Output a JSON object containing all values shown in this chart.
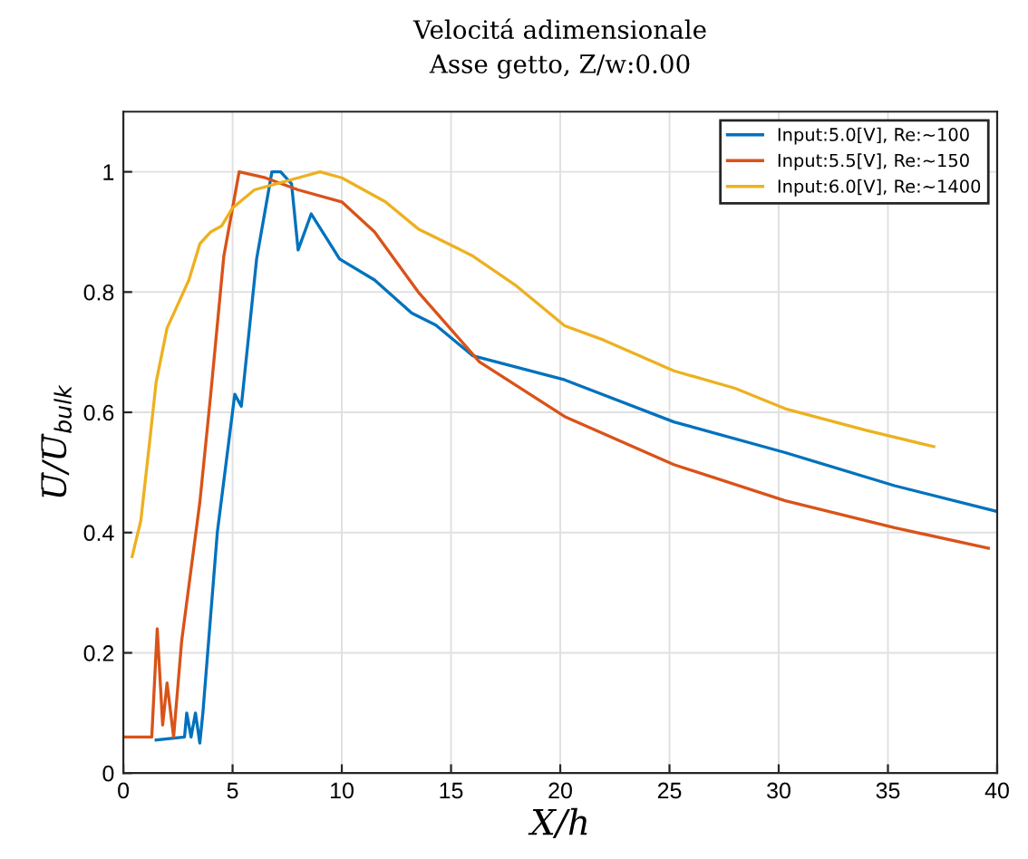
{
  "chart_data": {
    "type": "line",
    "title": "Velocitá adimensionale",
    "subtitle": "Asse getto, Z/w:0.00",
    "xlabel": "X/h",
    "ylabel": "U̅/U̅$_{bulk}$",
    "xlim": [
      0,
      40
    ],
    "ylim": [
      0,
      1.1
    ],
    "xticks": [
      0,
      5,
      10,
      15,
      20,
      25,
      30,
      35,
      40
    ],
    "yticks": [
      0,
      0.2,
      0.4,
      0.6,
      0.8,
      1
    ],
    "grid": true,
    "legend": "top right",
    "series": [
      {
        "name": "Input:5.0[V], Re:∼100",
        "color": "#0072bd",
        "x": [
          1.5,
          2.8,
          2.9,
          3.1,
          3.3,
          3.5,
          3.64,
          4.3,
          5.1,
          5.4,
          6.1,
          6.8,
          7.2,
          7.7,
          8.0,
          8.6,
          9.9,
          11.5,
          13.2,
          14.3,
          16,
          20.2,
          25.2,
          30.3,
          35.3,
          40
        ],
        "values": [
          0.055,
          0.06,
          0.1,
          0.06,
          0.1,
          0.05,
          0.1,
          0.4,
          0.63,
          0.61,
          0.855,
          1.0,
          1.0,
          0.98,
          0.87,
          0.93,
          0.855,
          0.82,
          0.765,
          0.745,
          0.694,
          0.654,
          0.584,
          0.533,
          0.478,
          0.435
        ]
      },
      {
        "name": "Input:5.5[V], Re:∼150",
        "color": "#d95319",
        "x": [
          0,
          1.3,
          1.55,
          1.8,
          2.0,
          2.3,
          2.67,
          3.5,
          4.0,
          4.6,
          5.3,
          6.5,
          8,
          10,
          11.5,
          13.5,
          16.3,
          20.2,
          25.2,
          30.3,
          35.3,
          39.6
        ],
        "values": [
          0.06,
          0.06,
          0.24,
          0.08,
          0.15,
          0.06,
          0.22,
          0.45,
          0.63,
          0.86,
          1.0,
          0.99,
          0.97,
          0.95,
          0.9,
          0.8,
          0.684,
          0.593,
          0.513,
          0.453,
          0.408,
          0.374
        ]
      },
      {
        "name": "Input:6.0[V], Re:∼1400",
        "color": "#edb120",
        "x": [
          0.4,
          0.8,
          1.2,
          1.5,
          2.0,
          2.5,
          3,
          3.5,
          4,
          4.5,
          5,
          6,
          7,
          8,
          9,
          10,
          12,
          13.5,
          16,
          18,
          20.2,
          22,
          25.2,
          28,
          30.3,
          34,
          37.1
        ],
        "values": [
          0.36,
          0.42,
          0.55,
          0.65,
          0.74,
          0.78,
          0.82,
          0.88,
          0.9,
          0.91,
          0.94,
          0.97,
          0.98,
          0.99,
          1.0,
          0.99,
          0.95,
          0.905,
          0.86,
          0.81,
          0.744,
          0.72,
          0.669,
          0.64,
          0.606,
          0.57,
          0.543
        ]
      }
    ]
  }
}
